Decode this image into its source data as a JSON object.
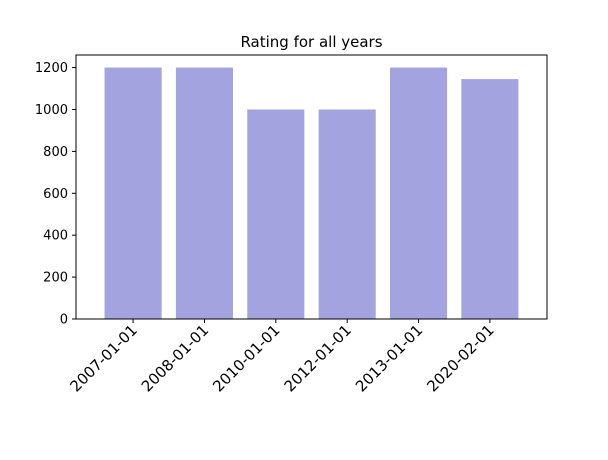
{
  "chart_data": {
    "type": "bar",
    "title": "Rating for all years",
    "xlabel": "",
    "ylabel": "",
    "categories": [
      "2007-01-01",
      "2008-01-01",
      "2010-01-01",
      "2012-01-01",
      "2013-01-01",
      "2020-02-01"
    ],
    "values": [
      1200,
      1200,
      1000,
      1000,
      1200,
      1145
    ],
    "ylim": [
      0,
      1260
    ],
    "yticks": [
      0,
      200,
      400,
      600,
      800,
      1000,
      1200
    ],
    "bar_color": "#a3a3e0",
    "grid": false,
    "legend": "none"
  }
}
